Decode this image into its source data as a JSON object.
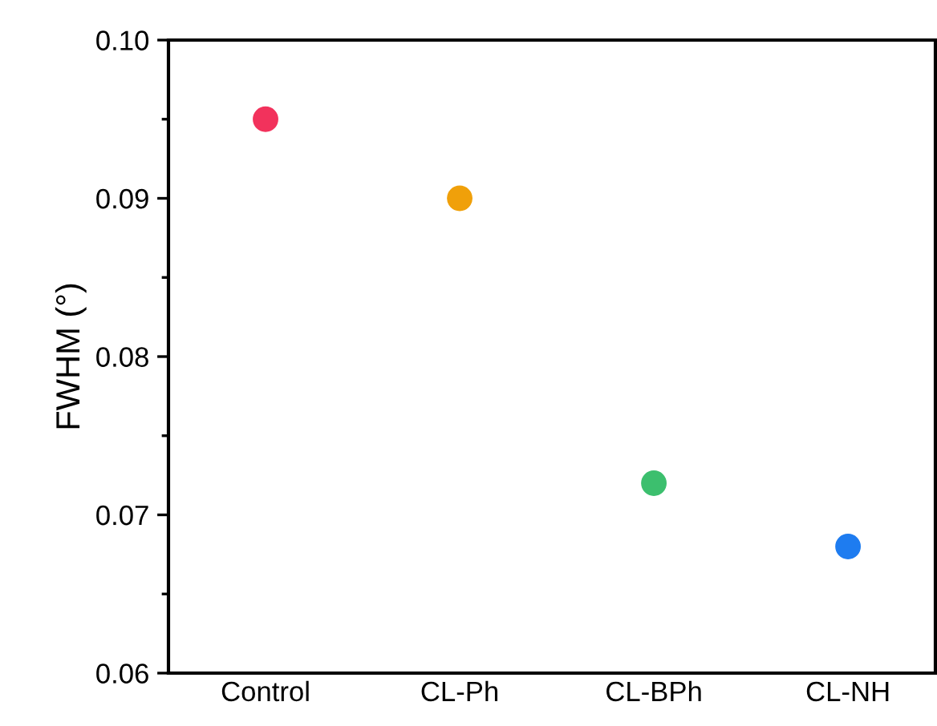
{
  "chart_data": {
    "type": "scatter",
    "ylabel": "FWHM (°)",
    "categories": [
      "Control",
      "CL-Ph",
      "CL-BPh",
      "CL-NH"
    ],
    "values": [
      0.095,
      0.09,
      0.072,
      0.068
    ],
    "colors": [
      "#f2325c",
      "#f0a00a",
      "#3cbf6e",
      "#1e7cf0"
    ],
    "ylim": [
      0.06,
      0.1
    ],
    "yticks": [
      0.06,
      0.07,
      0.08,
      0.09,
      {
        "value": 0.1,
        "label": "0.10"
      }
    ],
    "marker": "circle",
    "grid": false
  }
}
